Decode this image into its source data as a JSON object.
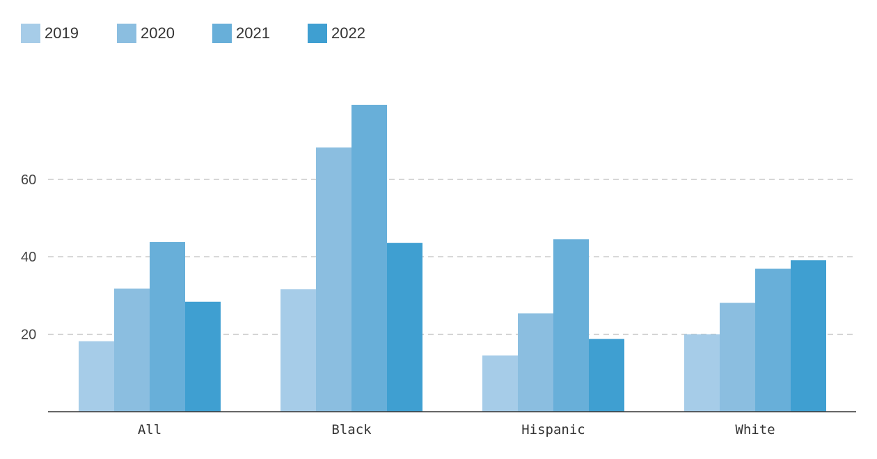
{
  "chart_data": {
    "type": "bar",
    "title": "",
    "xlabel": "",
    "ylabel": "",
    "categories": [
      "All",
      "Black",
      "Hispanic",
      "White"
    ],
    "series": [
      {
        "name": "2019",
        "color": "#a6cce8",
        "values": [
          18.2,
          31.6,
          14.5,
          20.0
        ]
      },
      {
        "name": "2020",
        "color": "#8bbee0",
        "values": [
          31.8,
          68.2,
          25.4,
          28.1
        ]
      },
      {
        "name": "2021",
        "color": "#68afd9",
        "values": [
          43.8,
          79.2,
          44.5,
          36.9
        ]
      },
      {
        "name": "2022",
        "color": "#3f9fd1",
        "values": [
          28.4,
          43.6,
          18.8,
          39.1
        ]
      }
    ],
    "yticks": [
      20,
      40,
      60
    ],
    "ylim": [
      0,
      80
    ],
    "grid": true,
    "legend_position": "top-left"
  }
}
